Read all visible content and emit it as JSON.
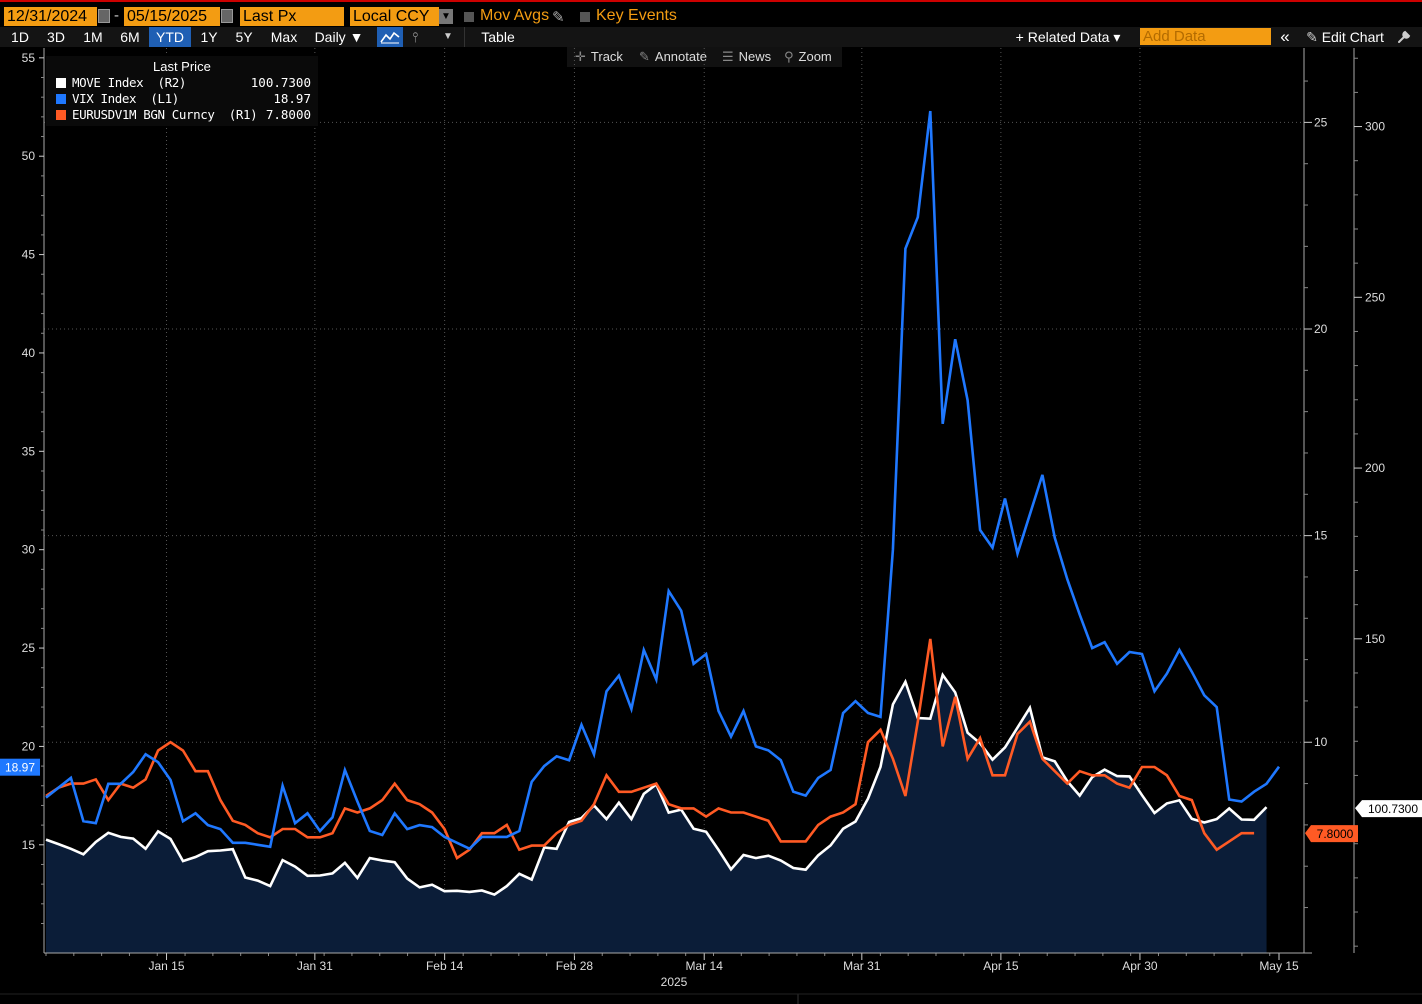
{
  "toolbar": {
    "start_date": "12/31/2024",
    "end_date": "05/15/2025",
    "date_separator": "-",
    "field": "Last Px",
    "currency": "Local CCY",
    "mov_avgs": "Mov Avgs",
    "key_events": "Key Events"
  },
  "ranges": [
    "1D",
    "3D",
    "1M",
    "6M",
    "YTD",
    "1Y",
    "5Y",
    "Max"
  ],
  "active_range": "YTD",
  "period": "Daily ▼",
  "table_label": "Table",
  "related_data": "+ Related Data ▾",
  "add_data_placeholder": "Add Data",
  "collapse_glyph": "«",
  "edit_chart": "Edit Chart",
  "chart_tools": {
    "track": "Track",
    "annotate": "Annotate",
    "news": "News",
    "zoom": "Zoom"
  },
  "legend": {
    "title": "Last Price",
    "items": [
      {
        "name": "MOVE Index  (R2)",
        "value": "100.7300",
        "color": "#ffffff"
      },
      {
        "name": "VIX Index  (L1)",
        "value": "18.97",
        "color": "#1f78ff"
      },
      {
        "name": "EURUSDV1M BGN Curncy  (R1)",
        "value": "7.8000",
        "color": "#ff5a24"
      }
    ]
  },
  "colors": {
    "vix": "#1f78ff",
    "move": "#ffffff",
    "eur": "#ff5a24",
    "fill": "#0b1d38",
    "accent": "#f39c12"
  },
  "chart_data": {
    "type": "line",
    "x_start": "2025-01-02",
    "x_end": "2025-05-15",
    "x_tick_labels": [
      "Jan 15",
      "Jan 31",
      "Feb 14",
      "Feb 28",
      "Mar 14",
      "Mar 31",
      "Apr 15",
      "Apr 30",
      "May 15"
    ],
    "x_year_label": "2025",
    "left_axis": {
      "series": "VIX Index",
      "ylim": [
        9.5,
        55.5
      ],
      "ticks": [
        15,
        20,
        25,
        30,
        35,
        40,
        45,
        50,
        55
      ]
    },
    "right1_axis": {
      "series": "EURUSDV1M BGN Curncy",
      "ylim": [
        4.9,
        26.8
      ],
      "ticks": [
        10,
        15,
        20,
        25
      ]
    },
    "right2_axis": {
      "series": "MOVE Index",
      "ylim": [
        58,
        323
      ],
      "ticks": [
        150,
        200,
        250,
        300
      ]
    },
    "last_value_tags": {
      "vix": "18.97",
      "move": "100.7300",
      "eur": "7.8000"
    },
    "series": [
      {
        "name": "VIX Index",
        "axis": "L1",
        "values": [
          17.4,
          17.9,
          18.4,
          16.2,
          16.1,
          18.1,
          18.1,
          18.7,
          19.6,
          19.2,
          18.3,
          16.2,
          16.6,
          16.0,
          15.8,
          15.1,
          15.1,
          15.0,
          14.9,
          18.0,
          16.1,
          16.6,
          15.7,
          16.4,
          18.8,
          17.2,
          15.7,
          15.5,
          16.6,
          15.8,
          16.0,
          15.9,
          15.4,
          15.1,
          14.8,
          15.4,
          15.4,
          15.4,
          15.7,
          18.2,
          19.0,
          19.5,
          19.3,
          21.1,
          19.6,
          22.8,
          23.6,
          21.9,
          24.9,
          23.4,
          27.9,
          26.9,
          24.2,
          24.7,
          21.8,
          20.5,
          21.8,
          20.0,
          19.8,
          19.3,
          17.7,
          17.5,
          18.4,
          18.8,
          21.7,
          22.3,
          21.7,
          21.5,
          30.0,
          45.3,
          46.9,
          52.3,
          36.4,
          40.7,
          37.6,
          31.0,
          30.1,
          32.6,
          29.8,
          31.8,
          33.8,
          30.6,
          28.5,
          26.7,
          25.0,
          25.3,
          24.2,
          24.8,
          24.7,
          22.8,
          23.7,
          24.9,
          23.8,
          22.6,
          22.0,
          17.3,
          17.2,
          17.7,
          18.1,
          18.97
        ]
      },
      {
        "name": "MOVE Index",
        "axis": "R2",
        "values": [
          91.2,
          89.9,
          88.5,
          86.9,
          90.5,
          93.2,
          92.0,
          91.5,
          88.5,
          93.6,
          91.4,
          84.9,
          86.1,
          87.8,
          88.0,
          88.4,
          80.1,
          79.2,
          77.6,
          85.2,
          83.3,
          80.6,
          80.7,
          81.3,
          84.4,
          80.0,
          85.8,
          85.1,
          84.6,
          79.8,
          77.2,
          78.0,
          76.1,
          76.2,
          75.9,
          76.3,
          75.1,
          77.6,
          81.2,
          79.5,
          88.9,
          88.5,
          96.4,
          97.5,
          101.2,
          97.2,
          102.0,
          97.2,
          104.6,
          107.4,
          99.1,
          100.0,
          94.4,
          93.5,
          88.2,
          82.5,
          86.7,
          85.8,
          86.5,
          85.1,
          82.9,
          82.4,
          86.6,
          89.5,
          94.4,
          96.5,
          103.2,
          112.5,
          130.8,
          137.4,
          126.8,
          126.6,
          139.4,
          134.3,
          122.5,
          119.4,
          114.6,
          118.2,
          124.0,
          129.8,
          115.3,
          114.1,
          108.3,
          104.1,
          109.5,
          111.7,
          109.8,
          109.7,
          104.2,
          99.0,
          101.8,
          102.7,
          97.3,
          96.2,
          97.2,
          100.3,
          97.1,
          97.0,
          100.73
        ]
      },
      {
        "name": "EURUSDV1M BGN Curncy",
        "axis": "R1",
        "values": [
          8.7,
          8.9,
          9.0,
          9.0,
          9.1,
          8.6,
          9.0,
          8.9,
          9.1,
          9.8,
          10.0,
          9.8,
          9.3,
          9.3,
          8.6,
          8.1,
          8.0,
          7.8,
          7.7,
          7.9,
          7.9,
          7.7,
          7.7,
          7.8,
          8.4,
          8.3,
          8.4,
          8.6,
          9.0,
          8.6,
          8.5,
          8.3,
          7.9,
          7.2,
          7.4,
          7.8,
          7.8,
          8.0,
          7.4,
          7.5,
          7.5,
          7.8,
          8.0,
          8.1,
          8.5,
          9.2,
          8.8,
          8.8,
          8.9,
          9.0,
          8.5,
          8.4,
          8.4,
          8.2,
          8.4,
          8.3,
          8.3,
          8.2,
          8.1,
          7.6,
          7.6,
          7.6,
          8.0,
          8.2,
          8.3,
          8.5,
          10.0,
          10.3,
          9.6,
          8.7,
          10.5,
          12.5,
          9.9,
          11.1,
          9.6,
          10.1,
          9.2,
          9.2,
          10.2,
          10.5,
          9.6,
          9.3,
          9.0,
          9.3,
          9.2,
          9.2,
          9.0,
          8.9,
          9.4,
          9.4,
          9.2,
          8.7,
          8.6,
          7.8,
          7.4,
          7.6,
          7.8,
          7.8
        ]
      }
    ]
  }
}
